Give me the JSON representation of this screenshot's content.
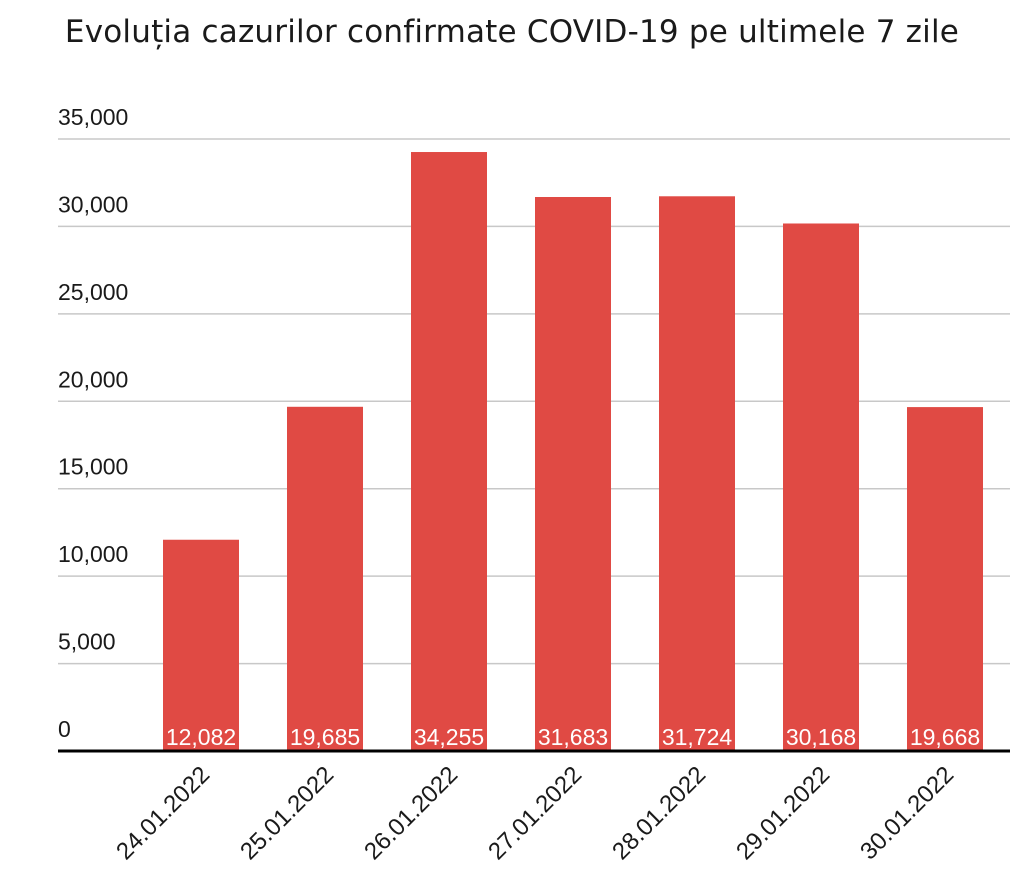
{
  "chart_data": {
    "type": "bar",
    "title": "Evoluția cazurilor confirmate COVID-19 pe ultimele 7 zile",
    "xlabel": "",
    "ylabel": "",
    "categories": [
      "24.01.2022",
      "25.01.2022",
      "26.01.2022",
      "27.01.2022",
      "28.01.2022",
      "29.01.2022",
      "30.01.2022"
    ],
    "values": [
      12082,
      19685,
      34255,
      31683,
      31724,
      30168,
      19668
    ],
    "value_labels": [
      "12,082",
      "19,685",
      "34,255",
      "31,683",
      "31,724",
      "30,168",
      "19,668"
    ],
    "ylim": [
      0,
      35000
    ],
    "yticks": [
      0,
      5000,
      10000,
      15000,
      20000,
      25000,
      30000,
      35000
    ],
    "ytick_labels": [
      "0",
      "5,000",
      "10,000",
      "15,000",
      "20,000",
      "25,000",
      "30,000",
      "35,000"
    ],
    "grid": true,
    "legend": "none",
    "bar_color": "#e04a44",
    "grid_color": "#c8c8c8",
    "axis_color": "#000000"
  }
}
